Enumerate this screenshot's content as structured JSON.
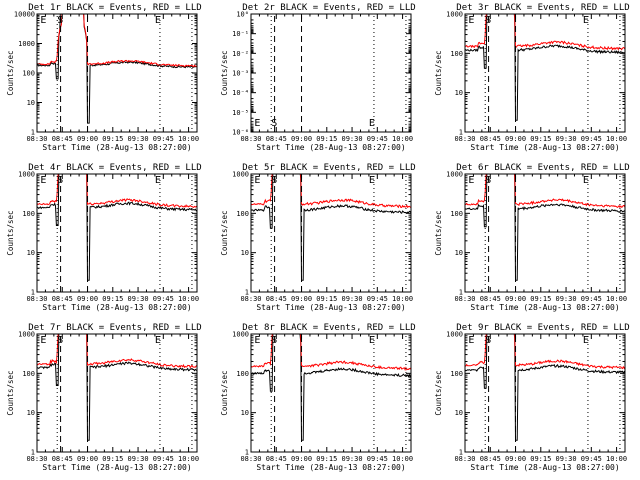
{
  "chart_data": {
    "type": "line",
    "layout": "3x3 grid",
    "scale": "log-y",
    "colors": {
      "events": "#000000",
      "lld": "#ff0000"
    },
    "x_ticks": [
      "08:30",
      "08:45",
      "09:00",
      "09:15",
      "09:30",
      "09:45",
      "10:00"
    ],
    "xlabel": "Start Time (28-Aug-13 08:27:00)",
    "ylabel": "Counts/sec",
    "x_range_minutes_after_08_30": [
      0,
      95
    ],
    "event_times": {
      "E_start": "08:33",
      "S": "08:44",
      "E_mid": "09:00",
      "E_end": "09:43"
    },
    "panels": [
      {
        "title": "Det 1r BLACK = Events, RED = LLD",
        "ylim": [
          1,
          10000
        ],
        "y_ticks": [
          "1",
          "10",
          "100",
          "1000",
          "10000"
        ],
        "has_data": true,
        "markers": [
          "E",
          "S",
          "E"
        ],
        "events_base": 180,
        "lld_base": 200
      },
      {
        "title": "Det 2r BLACK = Events, RED = LLD",
        "ylim": [
          1e-06,
          1
        ],
        "y_ticks": [
          "10⁰",
          "10⁻¹",
          "10⁻²",
          "10⁻³",
          "10⁻⁴",
          "10⁻⁵",
          "10⁻⁶"
        ],
        "has_data": false,
        "markers": [
          "E",
          "S",
          "E"
        ],
        "events_base": null,
        "lld_base": null
      },
      {
        "title": "Det 3r BLACK = Events, RED = LLD",
        "ylim": [
          1,
          1000
        ],
        "y_ticks": [
          "1",
          "10",
          "100",
          "1000"
        ],
        "has_data": true,
        "markers": [
          "E",
          "S",
          "E"
        ],
        "events_base": 120,
        "lld_base": 150
      },
      {
        "title": "Det 4r BLACK = Events, RED = LLD",
        "ylim": [
          1,
          1000
        ],
        "y_ticks": [
          "1",
          "10",
          "100",
          "1000"
        ],
        "has_data": true,
        "markers": [
          "E",
          "S",
          "E"
        ],
        "events_base": 140,
        "lld_base": 170
      },
      {
        "title": "Det 5r BLACK = Events, RED = LLD",
        "ylim": [
          1,
          1000
        ],
        "y_ticks": [
          "1",
          "10",
          "100",
          "1000"
        ],
        "has_data": true,
        "markers": [
          "E",
          "S",
          "E"
        ],
        "events_base": 120,
        "lld_base": 170
      },
      {
        "title": "Det 6r BLACK = Events, RED = LLD",
        "ylim": [
          1,
          1000
        ],
        "y_ticks": [
          "1",
          "10",
          "100",
          "1000"
        ],
        "has_data": true,
        "markers": [
          "E",
          "S",
          "E"
        ],
        "events_base": 130,
        "lld_base": 170
      },
      {
        "title": "Det 7r BLACK = Events, RED = LLD",
        "ylim": [
          1,
          1000
        ],
        "y_ticks": [
          "1",
          "10",
          "100",
          "1000"
        ],
        "has_data": true,
        "markers": [
          "E",
          "S",
          "E"
        ],
        "events_base": 140,
        "lld_base": 170
      },
      {
        "title": "Det 8r BLACK = Events, RED = LLD",
        "ylim": [
          1,
          1000
        ],
        "y_ticks": [
          "1",
          "10",
          "100",
          "1000"
        ],
        "has_data": true,
        "markers": [
          "E",
          "S",
          "E"
        ],
        "events_base": 100,
        "lld_base": 150
      },
      {
        "title": "Det 9r BLACK = Events, RED = LLD",
        "ylim": [
          1,
          1000
        ],
        "y_ticks": [
          "1",
          "10",
          "100",
          "1000"
        ],
        "has_data": true,
        "markers": [
          "E",
          "S",
          "E"
        ],
        "events_base": 120,
        "lld_base": 160
      }
    ]
  }
}
